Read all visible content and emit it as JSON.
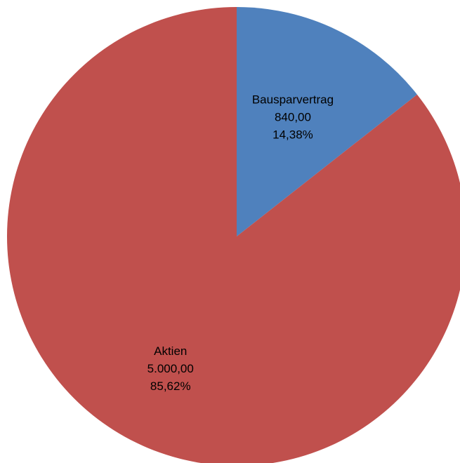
{
  "chart_data": {
    "type": "pie",
    "title": "",
    "start_angle_deg": 0,
    "direction": "clockwise",
    "slices": [
      {
        "label": "Bausparvertrag",
        "value": 840.0,
        "value_label": "840,00",
        "percent_label": "14,38%",
        "color": "#4f81bd"
      },
      {
        "label": "Aktien",
        "value": 5000.0,
        "value_label": "5.000,00",
        "percent_label": "85,62%",
        "color": "#c0504d"
      }
    ],
    "legend": "none"
  }
}
